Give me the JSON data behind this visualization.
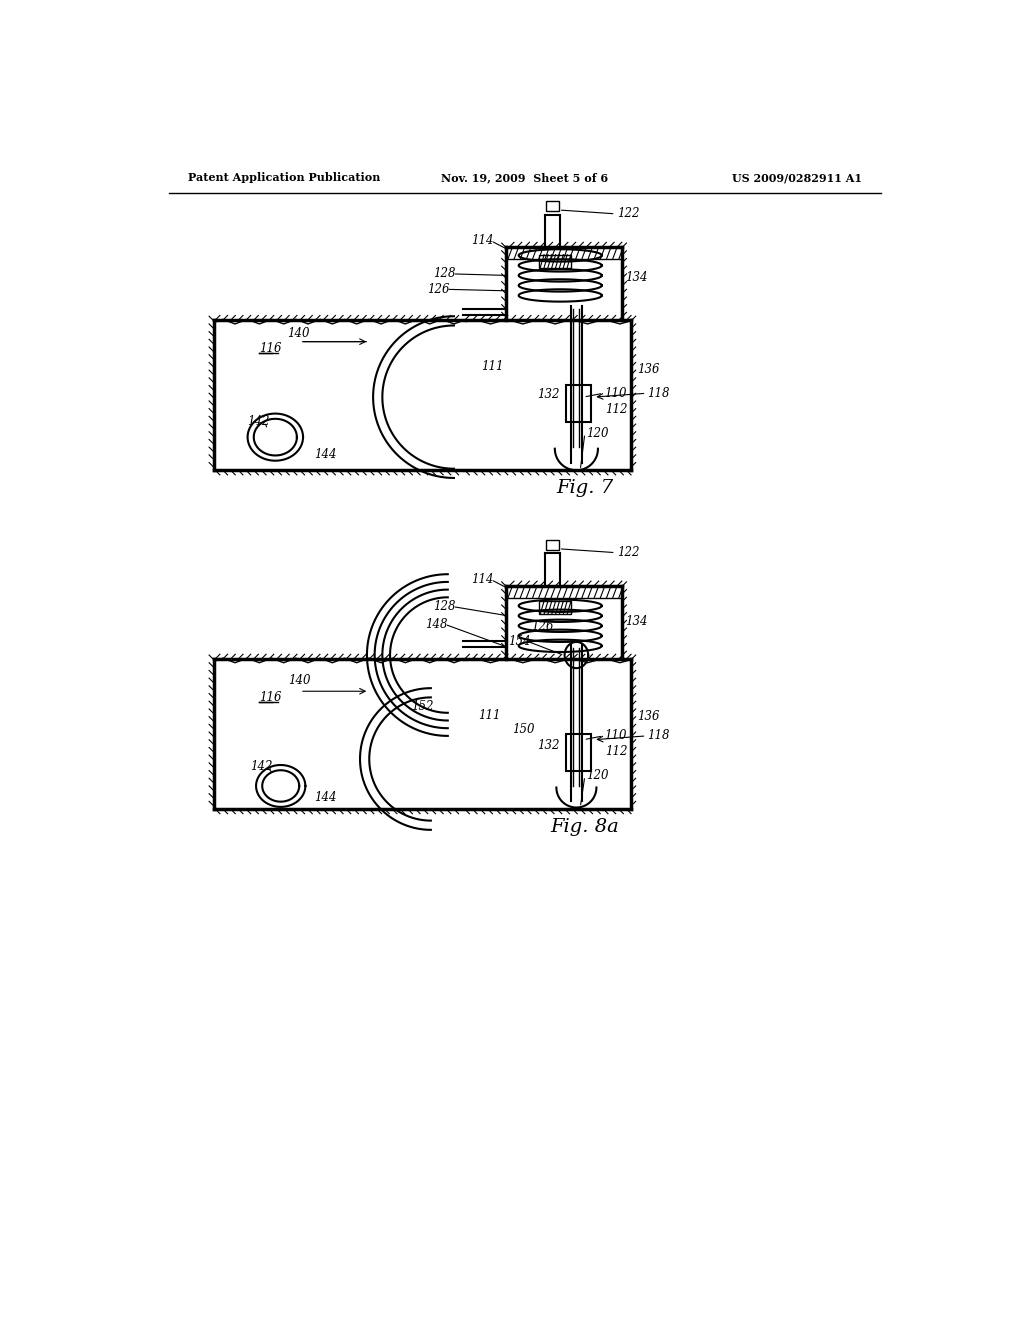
{
  "header_left": "Patent Application Publication",
  "header_mid": "Nov. 19, 2009  Sheet 5 of 6",
  "header_right": "US 2009/0282911 A1",
  "fig7_caption": "Fig. 7",
  "fig8_caption": "Fig. 8a",
  "bg_color": "#ffffff",
  "line_color": "#000000",
  "gray_fill": "#888888",
  "light_gray": "#cccccc",
  "hatch_color": "#555555"
}
